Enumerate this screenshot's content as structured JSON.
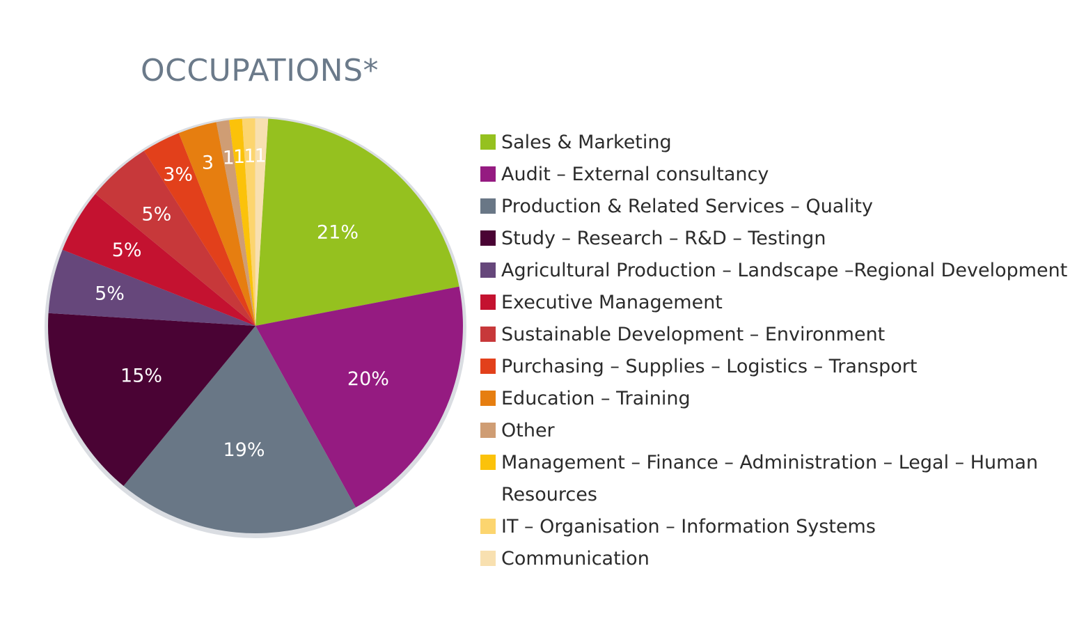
{
  "chart_data": {
    "type": "pie",
    "title": "OCCUPATIONS*",
    "slices": [
      {
        "name": "Sales & Marketing",
        "value": 21,
        "label": "21%",
        "color": "#95c11f"
      },
      {
        "name": "Audit – External consultancy",
        "value": 20,
        "label": "20%",
        "color": "#951b81"
      },
      {
        "name": "Production & Related Services – Quality",
        "value": 19,
        "label": "19%",
        "color": "#697786"
      },
      {
        "name": "Study – Research – R&D – Testingn",
        "value": 15,
        "label": "15%",
        "color": "#4a0334"
      },
      {
        "name": "Agricultural Production – Landscape –Regional Development",
        "value": 5,
        "label": "5%",
        "color": "#66477b"
      },
      {
        "name": "Executive Management",
        "value": 5,
        "label": "5%",
        "color": "#c41230"
      },
      {
        "name": "Sustainable Development – Environment",
        "value": 5,
        "label": "5%",
        "color": "#c7383a"
      },
      {
        "name": "Purchasing – Supplies – Logistics – Transport",
        "value": 3,
        "label": "3%",
        "color": "#e2401b"
      },
      {
        "name": "Education – Training",
        "value": 3,
        "label": "3",
        "color": "#e67e10"
      },
      {
        "name": "Other",
        "value": 1,
        "label": "1",
        "color": "#cf9d74"
      },
      {
        "name": "Management – Finance – Administration – Legal – Human Resources",
        "value": 1,
        "label": "1",
        "color": "#fbc20a"
      },
      {
        "name": "IT – Organisation – Information Systems",
        "value": 1,
        "label": "1",
        "color": "#fcd56f"
      },
      {
        "name": "Communication",
        "value": 1,
        "label": "1",
        "color": "#f8e0b0"
      }
    ],
    "legend_position": "right"
  }
}
